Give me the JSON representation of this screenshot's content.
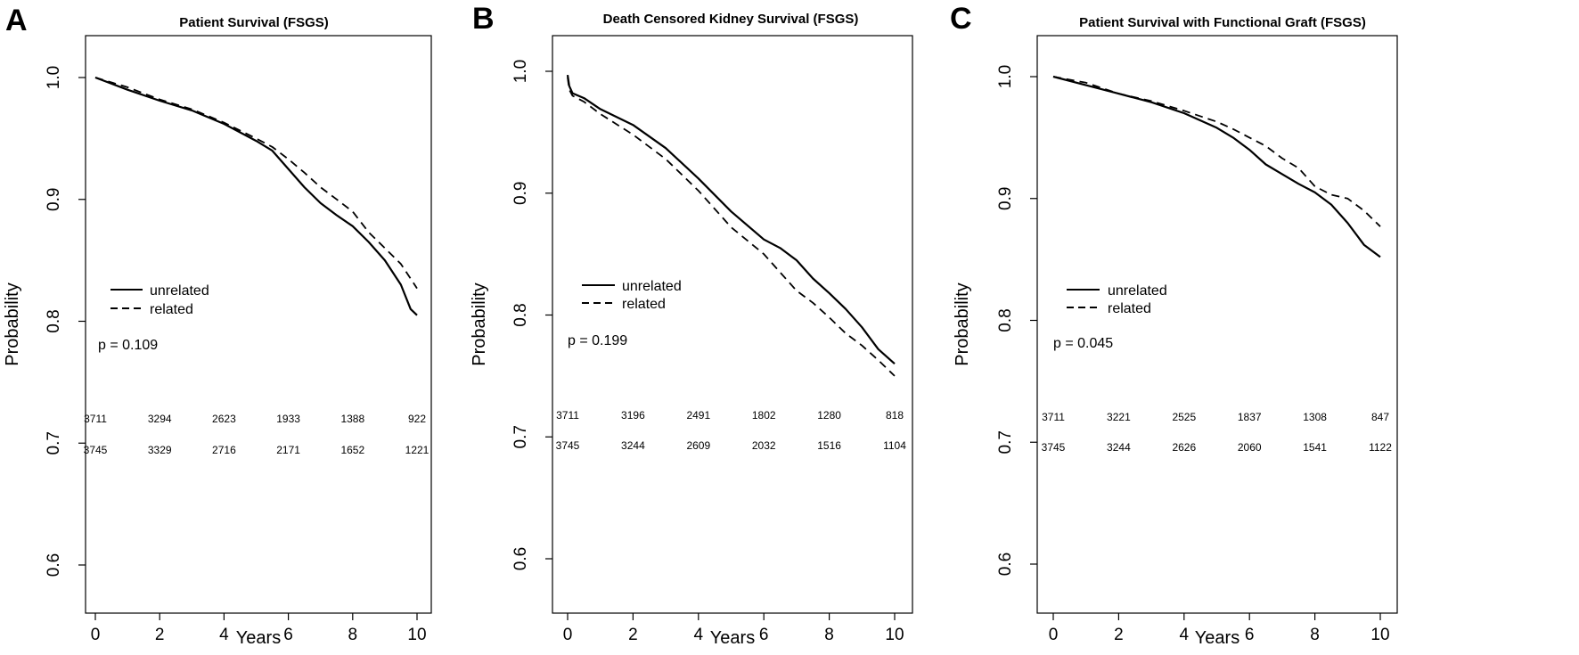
{
  "figure": {
    "background": "#ffffff",
    "line_color": "#000000"
  },
  "chart_data": [
    {
      "type": "line",
      "panel": "A",
      "title": "Patient Survival (FSGS)",
      "xlabel": "Years",
      "ylabel": "Probability",
      "xlim": [
        0,
        10
      ],
      "ylim": [
        0.6,
        1.0
      ],
      "xticks": [
        "0",
        "2",
        "4",
        "6",
        "8",
        "10"
      ],
      "yticks": [
        "0.6",
        "0.7",
        "0.8",
        "0.9",
        "1.0"
      ],
      "grid": false,
      "legend": {
        "placement": "left-middle",
        "entries": [
          {
            "label": "unrelated",
            "style": "solid"
          },
          {
            "label": "related",
            "style": "dashed"
          }
        ]
      },
      "annotation": "p = 0.109",
      "series": [
        {
          "name": "unrelated",
          "style": "solid",
          "x": [
            0,
            1,
            2,
            3,
            4,
            5,
            5.5,
            6,
            6.5,
            7,
            7.5,
            8,
            8.5,
            9,
            9.5,
            9.8,
            10
          ],
          "y": [
            1.0,
            0.99,
            0.981,
            0.973,
            0.962,
            0.948,
            0.94,
            0.925,
            0.91,
            0.897,
            0.887,
            0.878,
            0.865,
            0.85,
            0.83,
            0.81,
            0.805
          ]
        },
        {
          "name": "related",
          "style": "dashed",
          "x": [
            0,
            1,
            2,
            3,
            4,
            5,
            5.5,
            6,
            6.5,
            7,
            7.5,
            8,
            8.5,
            9,
            9.5,
            10
          ],
          "y": [
            1.0,
            0.992,
            0.982,
            0.974,
            0.963,
            0.95,
            0.943,
            0.933,
            0.922,
            0.91,
            0.9,
            0.89,
            0.873,
            0.86,
            0.847,
            0.827
          ]
        }
      ],
      "at_risk": {
        "times": [
          0,
          2,
          4,
          6,
          8,
          10
        ],
        "rows": [
          {
            "name": "unrelated",
            "values": [
              "3711",
              "3294",
              "2623",
              "1933",
              "1388",
              "922"
            ]
          },
          {
            "name": "related",
            "values": [
              "3745",
              "3329",
              "2716",
              "2171",
              "1652",
              "1221"
            ]
          }
        ]
      }
    },
    {
      "type": "line",
      "panel": "B",
      "title": "Death Censored Kidney Survival (FSGS)",
      "xlabel": "Years",
      "ylabel": "Probability",
      "xlim": [
        0,
        10
      ],
      "ylim": [
        0.6,
        1.0
      ],
      "xticks": [
        "0",
        "2",
        "4",
        "6",
        "8",
        "10"
      ],
      "yticks": [
        "0.6",
        "0.7",
        "0.8",
        "0.9",
        "1.0"
      ],
      "grid": false,
      "legend": {
        "placement": "left-middle",
        "entries": [
          {
            "label": "unrelated",
            "style": "solid"
          },
          {
            "label": "related",
            "style": "dashed"
          }
        ]
      },
      "annotation": "p = 0.199",
      "series": [
        {
          "name": "unrelated",
          "style": "solid",
          "x": [
            0,
            0.05,
            0.15,
            0.5,
            1,
            2,
            3,
            4,
            5,
            6,
            6.5,
            7,
            7.5,
            8,
            8.5,
            9,
            9.5,
            10
          ],
          "y": [
            0.997,
            0.988,
            0.982,
            0.978,
            0.969,
            0.956,
            0.937,
            0.912,
            0.885,
            0.862,
            0.855,
            0.845,
            0.83,
            0.818,
            0.805,
            0.79,
            0.772,
            0.76
          ]
        },
        {
          "name": "related",
          "style": "dashed",
          "x": [
            0,
            0.05,
            0.15,
            0.5,
            1,
            2,
            3,
            4,
            5,
            6,
            6.5,
            7,
            7.5,
            8,
            8.5,
            9,
            9.5,
            10
          ],
          "y": [
            0.995,
            0.985,
            0.98,
            0.975,
            0.965,
            0.948,
            0.928,
            0.902,
            0.872,
            0.85,
            0.835,
            0.82,
            0.81,
            0.798,
            0.785,
            0.775,
            0.763,
            0.75
          ]
        }
      ],
      "at_risk": {
        "times": [
          0,
          2,
          4,
          6,
          8,
          10
        ],
        "rows": [
          {
            "name": "unrelated",
            "values": [
              "3711",
              "3196",
              "2491",
              "1802",
              "1280",
              "818"
            ]
          },
          {
            "name": "related",
            "values": [
              "3745",
              "3244",
              "2609",
              "2032",
              "1516",
              "1104"
            ]
          }
        ]
      }
    },
    {
      "type": "line",
      "panel": "C",
      "title": "Patient Survival with Functional Graft (FSGS)",
      "xlabel": "Years",
      "ylabel": "Probability",
      "xlim": [
        0,
        10
      ],
      "ylim": [
        0.6,
        1.0
      ],
      "xticks": [
        "0",
        "2",
        "4",
        "6",
        "8",
        "10"
      ],
      "yticks": [
        "0.6",
        "0.7",
        "0.8",
        "0.9",
        "1.0"
      ],
      "grid": false,
      "legend": {
        "placement": "left-middle",
        "entries": [
          {
            "label": "unrelated",
            "style": "solid"
          },
          {
            "label": "related",
            "style": "dashed"
          }
        ]
      },
      "annotation": "p = 0.045",
      "series": [
        {
          "name": "unrelated",
          "style": "solid",
          "x": [
            0,
            1,
            2,
            3,
            4,
            5,
            5.5,
            6,
            6.5,
            7,
            7.5,
            8,
            8.5,
            9,
            9.5,
            10
          ],
          "y": [
            1.0,
            0.993,
            0.986,
            0.979,
            0.97,
            0.958,
            0.95,
            0.94,
            0.928,
            0.92,
            0.912,
            0.905,
            0.895,
            0.88,
            0.862,
            0.852
          ]
        },
        {
          "name": "related",
          "style": "dashed",
          "x": [
            0,
            1,
            2,
            3,
            4,
            5,
            5.5,
            6,
            6.5,
            7,
            7.5,
            8,
            8.5,
            9,
            9.5,
            10
          ],
          "y": [
            1.0,
            0.995,
            0.986,
            0.98,
            0.972,
            0.963,
            0.957,
            0.95,
            0.943,
            0.933,
            0.925,
            0.91,
            0.903,
            0.9,
            0.89,
            0.877
          ]
        }
      ],
      "at_risk": {
        "times": [
          0,
          2,
          4,
          6,
          8,
          10
        ],
        "rows": [
          {
            "name": "unrelated",
            "values": [
              "3711",
              "3221",
              "2525",
              "1837",
              "1308",
              "847"
            ]
          },
          {
            "name": "related",
            "values": [
              "3745",
              "3244",
              "2626",
              "2060",
              "1541",
              "1122"
            ]
          }
        ]
      }
    }
  ]
}
